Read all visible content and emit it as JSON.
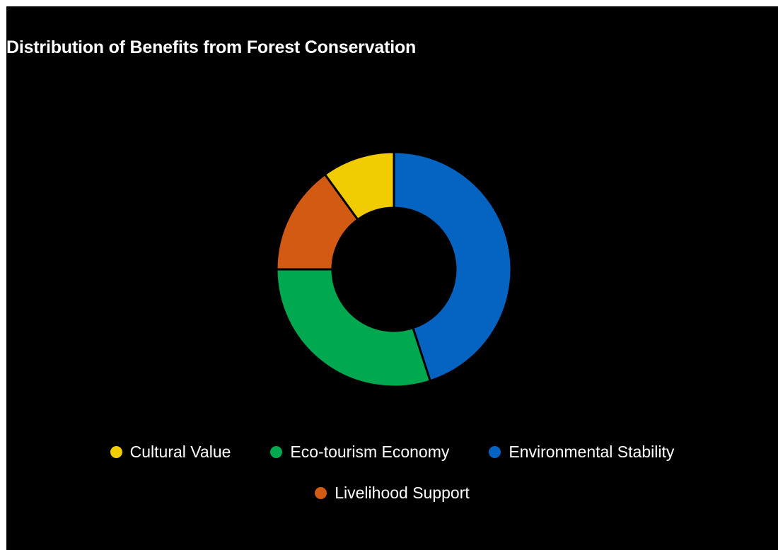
{
  "chart_data": {
    "type": "pie",
    "variant": "donut",
    "title": "Distribution of Benefits from Forest Conservation",
    "slices": [
      {
        "label": "Environmental Stability",
        "value": 45,
        "color": "#0563C1"
      },
      {
        "label": "Eco-tourism Economy",
        "value": 30,
        "color": "#00A94F"
      },
      {
        "label": "Livelihood Support",
        "value": 15,
        "color": "#D35A13"
      },
      {
        "label": "Cultural Value",
        "value": 10,
        "color": "#F0CC00"
      }
    ],
    "legend": {
      "placement": "bottom",
      "items": [
        {
          "label": "Cultural Value",
          "color": "#F0CC00"
        },
        {
          "label": "Eco-tourism Economy",
          "color": "#00A94F"
        },
        {
          "label": "Environmental Stability",
          "color": "#0563C1"
        },
        {
          "label": "Livelihood Support",
          "color": "#D35A13"
        }
      ]
    },
    "background": "#000000"
  }
}
